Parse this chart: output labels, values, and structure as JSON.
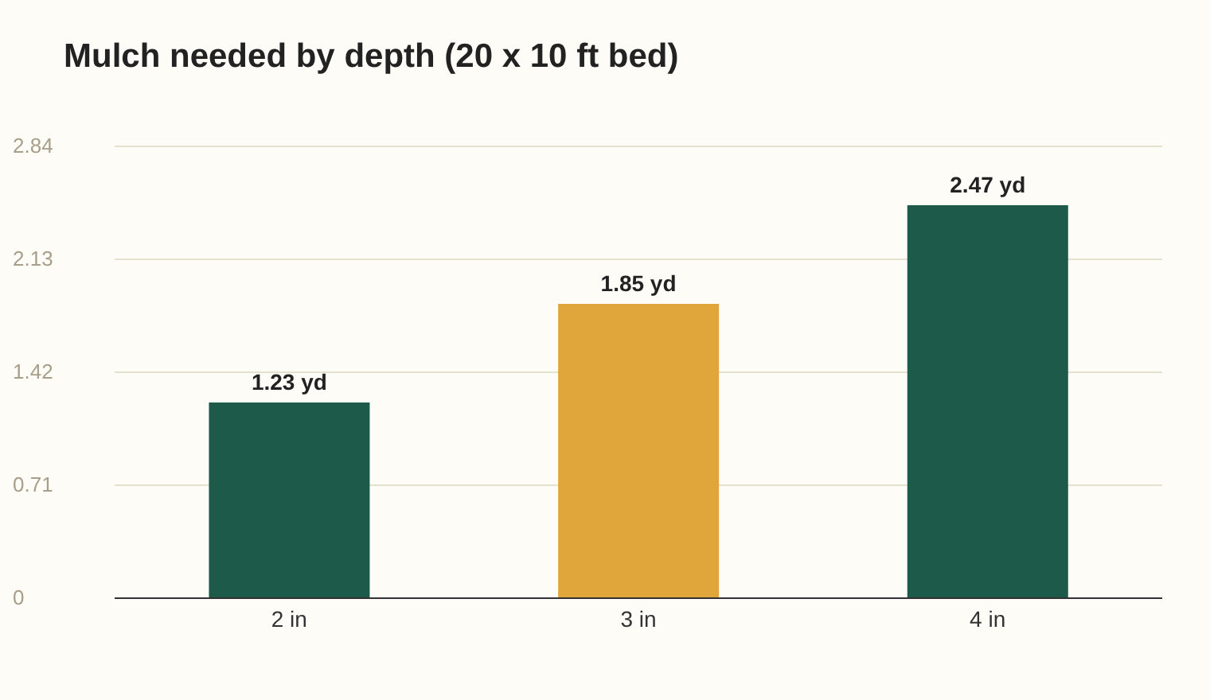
{
  "chart_data": {
    "type": "bar",
    "title": "Mulch needed by depth (20 x 10 ft bed)",
    "categories": [
      "2 in",
      "3 in",
      "4 in"
    ],
    "values": [
      1.23,
      1.85,
      2.47
    ],
    "colors": [
      "#1e5a4a",
      "#e0a63c",
      "#1e5a4a"
    ],
    "value_labels": [
      "1.23 yd",
      "1.85 yd",
      "2.47 yd"
    ],
    "ylim": [
      0,
      2.84
    ],
    "yticks": [
      0,
      0.71,
      1.42,
      2.13,
      2.84
    ],
    "grid": "y"
  }
}
